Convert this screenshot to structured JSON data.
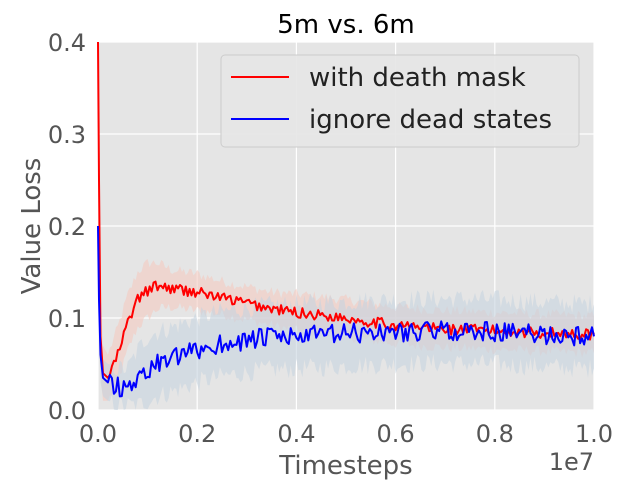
{
  "chart_data": {
    "type": "line",
    "title": "5m vs. 6m",
    "xlabel": "Timesteps",
    "ylabel": "Value Loss",
    "x_scale_label": "1e7",
    "xlim": [
      0,
      1.0
    ],
    "ylim": [
      0,
      0.4
    ],
    "xticks": [
      "0.0",
      "0.2",
      "0.4",
      "0.6",
      "0.8",
      "1.0"
    ],
    "yticks": [
      "0.0",
      "0.1",
      "0.2",
      "0.3",
      "0.4"
    ],
    "grid": true,
    "legend_position": "top-right",
    "background": "#e5e5e5",
    "series": [
      {
        "name": "with death mask",
        "color": "#ff0000",
        "band_color": "#f4c9c0",
        "x": [
          0.0,
          0.002,
          0.005,
          0.01,
          0.02,
          0.04,
          0.06,
          0.08,
          0.1,
          0.12,
          0.15,
          0.2,
          0.25,
          0.3,
          0.35,
          0.4,
          0.5,
          0.6,
          0.7,
          0.8,
          0.9,
          1.0
        ],
        "y": [
          0.4,
          0.25,
          0.08,
          0.04,
          0.035,
          0.06,
          0.095,
          0.12,
          0.13,
          0.135,
          0.132,
          0.128,
          0.122,
          0.116,
          0.11,
          0.106,
          0.1,
          0.092,
          0.088,
          0.086,
          0.084,
          0.082
        ],
        "band": [
          0.02,
          0.05,
          0.04,
          0.03,
          0.025,
          0.03,
          0.03,
          0.03,
          0.03,
          0.025,
          0.02,
          0.02,
          0.018,
          0.018,
          0.018,
          0.02,
          0.02,
          0.02,
          0.02,
          0.02,
          0.02,
          0.02
        ]
      },
      {
        "name": "ignore dead states",
        "color": "#0000ff",
        "band_color": "#c6d3e0",
        "x": [
          0.0,
          0.002,
          0.005,
          0.01,
          0.02,
          0.04,
          0.06,
          0.08,
          0.1,
          0.12,
          0.15,
          0.2,
          0.25,
          0.3,
          0.35,
          0.4,
          0.5,
          0.6,
          0.7,
          0.8,
          0.9,
          1.0
        ],
        "y": [
          0.2,
          0.12,
          0.06,
          0.035,
          0.03,
          0.025,
          0.025,
          0.035,
          0.045,
          0.05,
          0.055,
          0.065,
          0.072,
          0.076,
          0.079,
          0.08,
          0.083,
          0.085,
          0.086,
          0.085,
          0.082,
          0.08
        ],
        "band": [
          0.02,
          0.03,
          0.03,
          0.02,
          0.02,
          0.02,
          0.02,
          0.03,
          0.035,
          0.035,
          0.035,
          0.035,
          0.035,
          0.035,
          0.035,
          0.035,
          0.035,
          0.035,
          0.035,
          0.035,
          0.035,
          0.035
        ]
      }
    ]
  }
}
